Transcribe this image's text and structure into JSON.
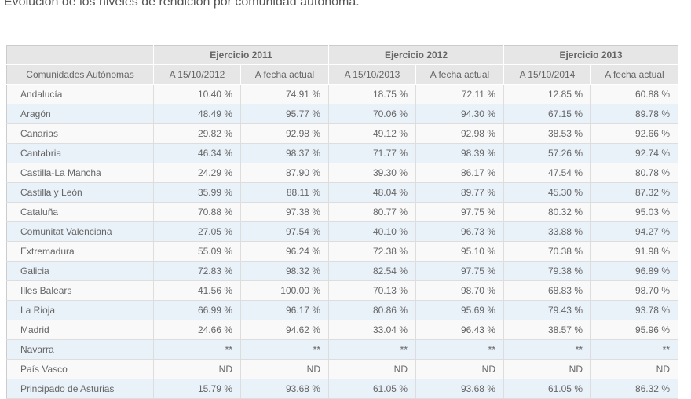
{
  "page": {
    "title": "Evolución de los niveles de rendición por comunidad autónoma."
  },
  "colors": {
    "header_bg": "#e6e6e6",
    "header_separator": "#ffffff",
    "row_bg": "#f9f9f9",
    "row_alt_bg": "#e9f1f9",
    "cell_border": "#dddddd",
    "outer_border": "#cccccc",
    "text": "#666666",
    "title_text": "#555555"
  },
  "chart_data": {
    "type": "table",
    "title": "Evolución de los niveles de rendición por comunidad autónoma.",
    "column_groups": [
      "Ejercicio 2011",
      "Ejercicio 2012",
      "Ejercicio 2013"
    ],
    "corner_label": "",
    "columns": [
      "Comunidades Autónomas",
      "A 15/10/2012",
      "A fecha actual",
      "A 15/10/2013",
      "A fecha actual",
      "A 15/10/2014",
      "A fecha actual"
    ],
    "rows": [
      {
        "name": "Andalucía",
        "values": [
          "10.40 %",
          "74.91 %",
          "18.75 %",
          "72.11 %",
          "12.85 %",
          "60.88 %"
        ]
      },
      {
        "name": "Aragón",
        "values": [
          "48.49 %",
          "95.77 %",
          "70.06 %",
          "94.30 %",
          "67.15 %",
          "89.78 %"
        ]
      },
      {
        "name": "Canarias",
        "values": [
          "29.82 %",
          "92.98 %",
          "49.12 %",
          "92.98 %",
          "38.53 %",
          "92.66 %"
        ]
      },
      {
        "name": "Cantabria",
        "values": [
          "46.34 %",
          "98.37 %",
          "71.77 %",
          "98.39 %",
          "57.26 %",
          "92.74 %"
        ]
      },
      {
        "name": "Castilla-La Mancha",
        "values": [
          "24.29 %",
          "87.90 %",
          "39.30 %",
          "86.17 %",
          "47.54 %",
          "80.78 %"
        ]
      },
      {
        "name": "Castilla y León",
        "values": [
          "35.99 %",
          "88.11 %",
          "48.04 %",
          "89.77 %",
          "45.30 %",
          "87.32 %"
        ]
      },
      {
        "name": "Cataluña",
        "values": [
          "70.88 %",
          "97.38 %",
          "80.77 %",
          "97.75 %",
          "80.32 %",
          "95.03 %"
        ]
      },
      {
        "name": "Comunitat Valenciana",
        "values": [
          "27.05 %",
          "97.54 %",
          "40.10 %",
          "96.73 %",
          "33.88 %",
          "94.27 %"
        ]
      },
      {
        "name": "Extremadura",
        "values": [
          "55.09 %",
          "96.24 %",
          "72.38 %",
          "95.10 %",
          "70.38 %",
          "91.98 %"
        ]
      },
      {
        "name": "Galicia",
        "values": [
          "72.83 %",
          "98.32 %",
          "82.54 %",
          "97.75 %",
          "79.38 %",
          "96.89 %"
        ]
      },
      {
        "name": "Illes Balears",
        "values": [
          "41.56 %",
          "100.00 %",
          "70.13 %",
          "98.70 %",
          "68.83 %",
          "98.70 %"
        ]
      },
      {
        "name": "La Rioja",
        "values": [
          "66.99 %",
          "96.17 %",
          "80.86 %",
          "95.69 %",
          "79.43 %",
          "93.78 %"
        ]
      },
      {
        "name": "Madrid",
        "values": [
          "24.66 %",
          "94.62 %",
          "33.04 %",
          "96.43 %",
          "38.57 %",
          "95.96 %"
        ]
      },
      {
        "name": "Navarra",
        "values": [
          "**",
          "**",
          "**",
          "**",
          "**",
          "**"
        ]
      },
      {
        "name": "País Vasco",
        "values": [
          "ND",
          "ND",
          "ND",
          "ND",
          "ND",
          "ND"
        ]
      },
      {
        "name": "Principado de Asturias",
        "values": [
          "15.79 %",
          "93.68 %",
          "61.05 %",
          "93.68 %",
          "61.05 %",
          "86.32 %"
        ]
      }
    ]
  }
}
